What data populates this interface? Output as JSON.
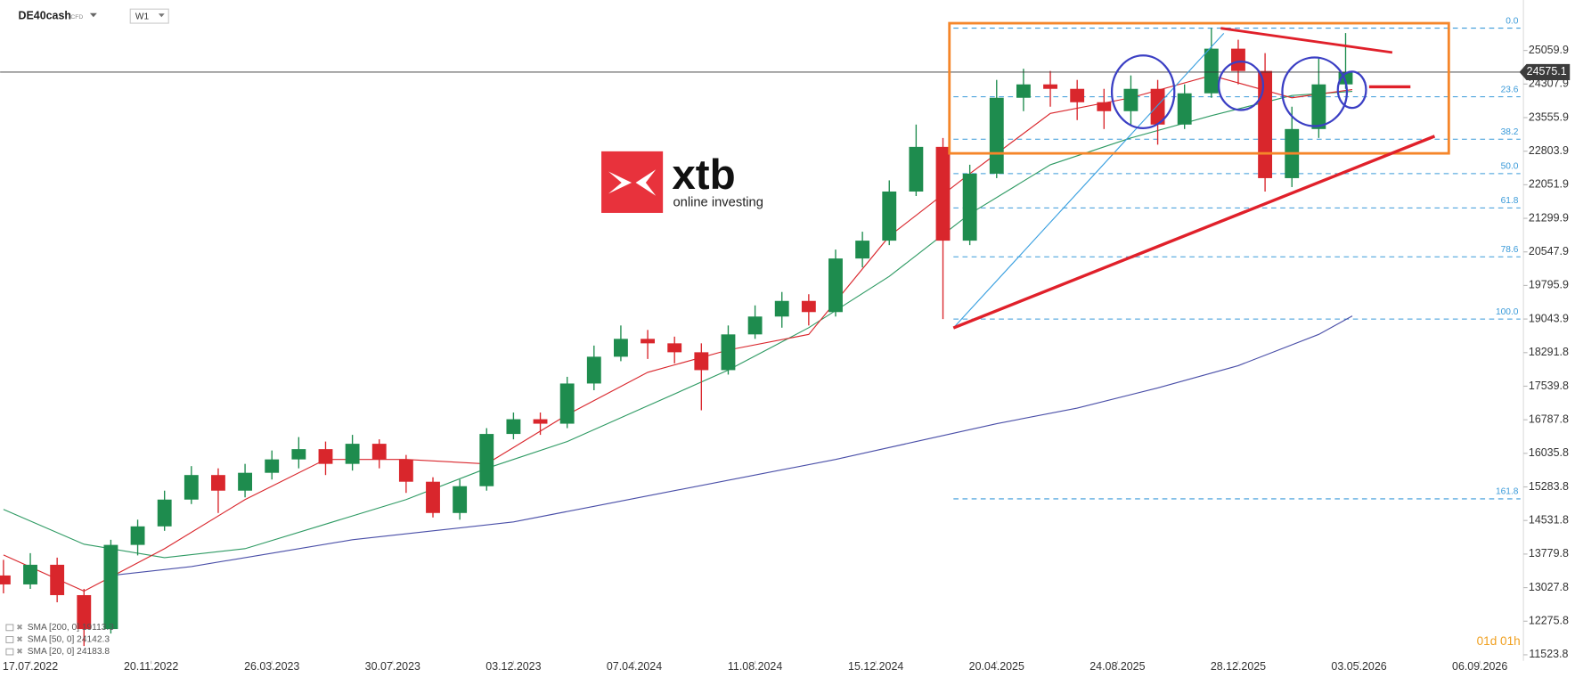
{
  "chart_data": {
    "type": "candlestick",
    "title": "DE40cash",
    "badge": "CFD",
    "timeframe": "W1",
    "logo": {
      "brand": "xtb",
      "tagline": "online investing"
    },
    "countdown": "01d 01h",
    "up_color": "#1e8c4e",
    "down_color": "#d9262c",
    "x": [
      -4,
      0,
      4,
      8,
      12,
      16,
      20,
      24,
      28,
      32,
      36,
      40,
      44,
      48,
      52,
      56,
      60,
      64,
      68,
      72,
      76,
      80,
      84,
      88,
      92,
      96,
      100,
      104,
      108,
      112,
      116,
      120,
      124,
      128,
      132,
      136,
      140,
      144,
      148,
      152,
      156,
      160,
      164,
      168,
      172,
      176,
      180,
      184,
      188,
      192,
      196
    ],
    "open": [
      13300,
      13100,
      13540,
      12860,
      12100,
      13985,
      14400,
      15000,
      15550,
      15200,
      15600,
      15900,
      16130,
      15800,
      16250,
      15900,
      15400,
      14700,
      15300,
      16470,
      16800,
      16700,
      17600,
      18200,
      18600,
      18500,
      18300,
      17900,
      18700,
      19100,
      19450,
      19200,
      20400,
      20800,
      21900,
      22900,
      20800,
      22300,
      24000,
      24300,
      24200,
      23900,
      23700,
      24200,
      23400,
      24100,
      25100,
      24600,
      22200,
      23300,
      24300
    ],
    "high": [
      13650,
      13800,
      13700,
      13000,
      14100,
      14550,
      15200,
      15750,
      15700,
      15800,
      16100,
      16400,
      16300,
      16450,
      16350,
      16000,
      15500,
      15450,
      16600,
      16950,
      16950,
      17750,
      18450,
      18900,
      18800,
      18650,
      18500,
      18900,
      19350,
      19650,
      19600,
      20600,
      21000,
      22150,
      23400,
      23100,
      22500,
      24400,
      24650,
      24600,
      24400,
      24200,
      24500,
      24400,
      24300,
      25560,
      25300,
      25000,
      23800,
      24900,
      25450
    ],
    "low": [
      12900,
      13000,
      12700,
      11720,
      12000,
      13750,
      14300,
      14900,
      14700,
      15050,
      15450,
      15700,
      15550,
      15650,
      15700,
      15150,
      14600,
      14550,
      15200,
      16350,
      16450,
      16600,
      17450,
      18100,
      18150,
      18050,
      17000,
      17800,
      18600,
      18850,
      18900,
      19100,
      20200,
      20700,
      21800,
      19044,
      20700,
      22200,
      23700,
      23800,
      23500,
      23300,
      23400,
      22950,
      23300,
      24000,
      24300,
      21900,
      22000,
      23100,
      24200
    ],
    "close": [
      13100,
      13540,
      12860,
      12100,
      13985,
      14400,
      15000,
      15550,
      15200,
      15600,
      15900,
      16130,
      15800,
      16250,
      15900,
      15400,
      14700,
      15300,
      16470,
      16800,
      16700,
      17600,
      18200,
      18600,
      18500,
      18300,
      17900,
      18700,
      19100,
      19450,
      19200,
      20400,
      20800,
      21900,
      22900,
      20800,
      22300,
      24000,
      24300,
      24200,
      23900,
      23700,
      24200,
      23400,
      24100,
      25100,
      24600,
      22200,
      23300,
      24300,
      24575.1
    ],
    "xlim": [
      -4.5,
      222.5
    ],
    "ylim": [
      11388,
      26190
    ],
    "xticks": [
      {
        "value": 0,
        "label": "17.07.2022"
      },
      {
        "value": 18,
        "label": "20.11.2022"
      },
      {
        "value": 36,
        "label": "26.03.2023"
      },
      {
        "value": 54,
        "label": "30.07.2023"
      },
      {
        "value": 72,
        "label": "03.12.2023"
      },
      {
        "value": 90,
        "label": "07.04.2024"
      },
      {
        "value": 108,
        "label": "11.08.2024"
      },
      {
        "value": 126,
        "label": "15.12.2024"
      },
      {
        "value": 144,
        "label": "20.04.2025"
      },
      {
        "value": 162,
        "label": "24.08.2025"
      },
      {
        "value": 180,
        "label": "28.12.2025"
      },
      {
        "value": 198,
        "label": "03.05.2026"
      },
      {
        "value": 216,
        "label": "06.09.2026"
      }
    ],
    "yticks": [
      25059.9,
      24307.9,
      23555.9,
      22803.9,
      22051.9,
      21299.9,
      20547.9,
      19795.9,
      19043.9,
      18291.8,
      17539.8,
      16787.8,
      16035.8,
      15283.8,
      14531.8,
      13779.8,
      13027.8,
      12275.8,
      11523.8
    ],
    "sma": [
      {
        "name": "SMA [200, 0] 19113.3",
        "color": "#4a4fa8",
        "x": [
          12,
          24,
          36,
          48,
          60,
          72,
          84,
          96,
          108,
          120,
          132,
          144,
          156,
          168,
          180,
          192,
          197
        ],
        "values": [
          13300,
          13500,
          13800,
          14100,
          14300,
          14500,
          14850,
          15200,
          15550,
          15900,
          16300,
          16700,
          17050,
          17500,
          18000,
          18700,
          19113.3
        ]
      },
      {
        "name": "SMA [50, 0] 24142.3",
        "color": "#2e9a63",
        "x": [
          -4,
          8,
          20,
          32,
          44,
          56,
          68,
          80,
          92,
          104,
          116,
          128,
          140,
          152,
          164,
          176,
          188,
          197
        ],
        "values": [
          14780,
          14000,
          13700,
          13900,
          14450,
          15000,
          15700,
          16300,
          17100,
          17900,
          18850,
          20000,
          21400,
          22500,
          23100,
          23600,
          24050,
          24142.3
        ]
      },
      {
        "name": "SMA [20, 0] 24183.8",
        "color": "#d9262c",
        "x": [
          -4,
          8,
          20,
          32,
          44,
          56,
          68,
          80,
          92,
          104,
          116,
          128,
          140,
          152,
          164,
          176,
          188,
          197
        ],
        "values": [
          13760,
          12950,
          13900,
          15000,
          15900,
          15900,
          15800,
          16900,
          17850,
          18350,
          18700,
          20900,
          22300,
          23650,
          24000,
          24500,
          24000,
          24183.8
        ]
      }
    ],
    "fib": {
      "color": "#3a9ad9",
      "labels": [
        "0.0",
        "23.6",
        "38.2",
        "50.0",
        "61.8",
        "78.6",
        "100.0",
        "161.8"
      ],
      "prices": [
        25560,
        24022,
        23071,
        22302,
        21533,
        20438,
        19044,
        15016
      ]
    }
  }
}
